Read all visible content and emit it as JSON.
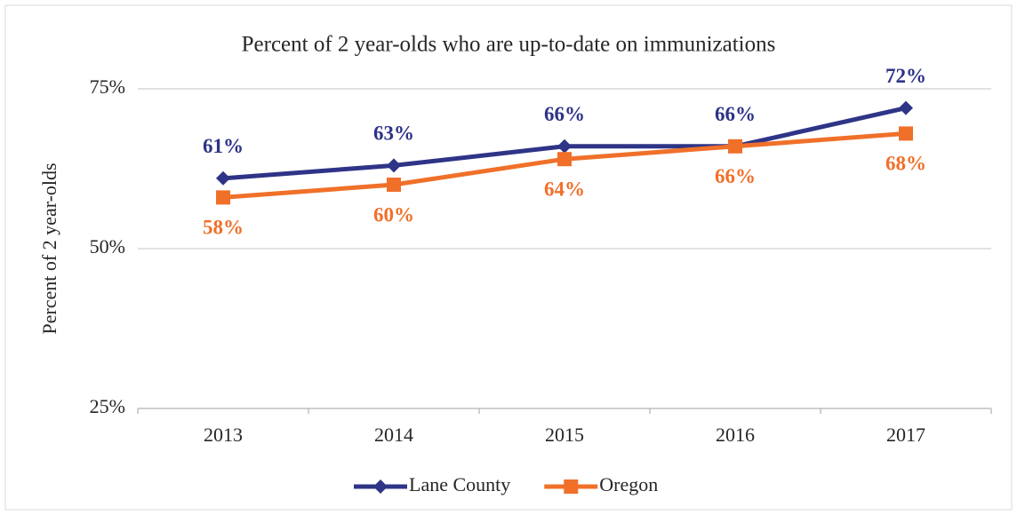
{
  "chart_data": {
    "type": "line",
    "title": "Percent of 2 year-olds who are up-to-date on immunizations",
    "y_label": "Percent of 2 year-olds",
    "categories": [
      "2013",
      "2014",
      "2015",
      "2016",
      "2017"
    ],
    "series": [
      {
        "name": "Lane County",
        "color": "#2e3486",
        "marker": "diamond",
        "label_position": "above",
        "values": [
          61,
          63,
          66,
          66,
          72
        ],
        "value_labels": [
          "61%",
          "63%",
          "66%",
          "66%",
          "72%"
        ]
      },
      {
        "name": "Oregon",
        "color": "#f0702a",
        "marker": "square",
        "label_position": "below",
        "values": [
          58,
          60,
          64,
          66,
          68
        ],
        "value_labels": [
          "58%",
          "60%",
          "64%",
          "66%",
          "68%"
        ]
      }
    ],
    "ylim": [
      25,
      75
    ],
    "yticks": [
      {
        "value": 25,
        "label": "25%"
      },
      {
        "value": 50,
        "label": "50%"
      },
      {
        "value": 75,
        "label": "75%"
      }
    ],
    "grid": true,
    "legend": "bottom"
  }
}
